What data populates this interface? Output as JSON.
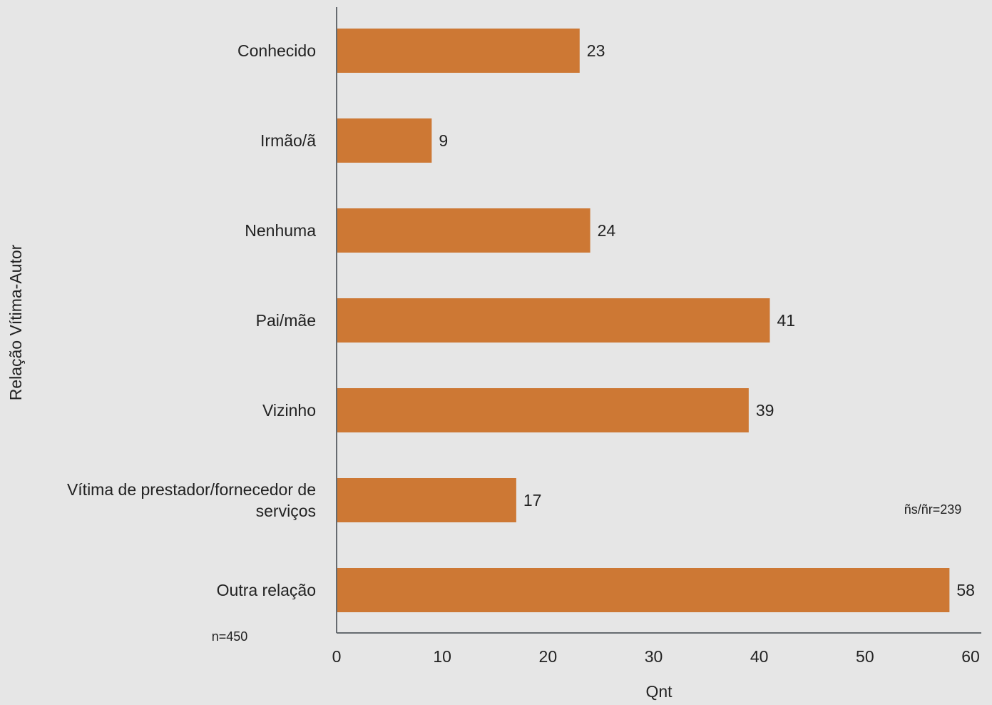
{
  "chart_data": {
    "type": "bar",
    "orientation": "horizontal",
    "categories": [
      [
        "Conhecido"
      ],
      [
        "Irmão/ã"
      ],
      [
        "Nenhuma"
      ],
      [
        "Pai/mãe"
      ],
      [
        "Vizinho"
      ],
      [
        "Vítima de prestador/fornecedor de",
        "serviços"
      ],
      [
        "Outra relação"
      ]
    ],
    "values": [
      23,
      9,
      24,
      41,
      39,
      17,
      58
    ],
    "xlabel": "Qnt",
    "ylabel": "Relação Vítima-Autor",
    "xlim": [
      0,
      60
    ],
    "xticks": [
      0,
      10,
      20,
      30,
      40,
      50,
      60
    ],
    "grid": false,
    "bar_color": "#cd7834",
    "background_color": "#e6e6e6",
    "annotations": {
      "n_total": "n=450",
      "no_response": "ñs/ñr=239"
    }
  }
}
